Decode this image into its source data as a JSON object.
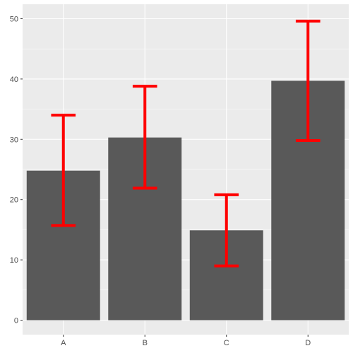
{
  "chart_data": {
    "type": "bar",
    "title": "",
    "xlabel": "",
    "ylabel": "",
    "categories": [
      "A",
      "B",
      "C",
      "D"
    ],
    "values": [
      24.8,
      30.3,
      14.9,
      39.7
    ],
    "error_low": [
      15.7,
      21.9,
      9.0,
      29.8
    ],
    "error_high": [
      34.0,
      38.8,
      20.8,
      49.6
    ],
    "ylim": [
      -2.4,
      52.4
    ],
    "yticks": [
      0,
      10,
      20,
      30,
      40,
      50
    ],
    "grid": true,
    "legend": "none",
    "colors": {
      "panel": "#ebebeb",
      "bar": "#595959",
      "error": "#ff0000",
      "grid_major": "#ffffff",
      "tick_text": "#4d4d4d",
      "tick_mark": "#333333"
    }
  }
}
